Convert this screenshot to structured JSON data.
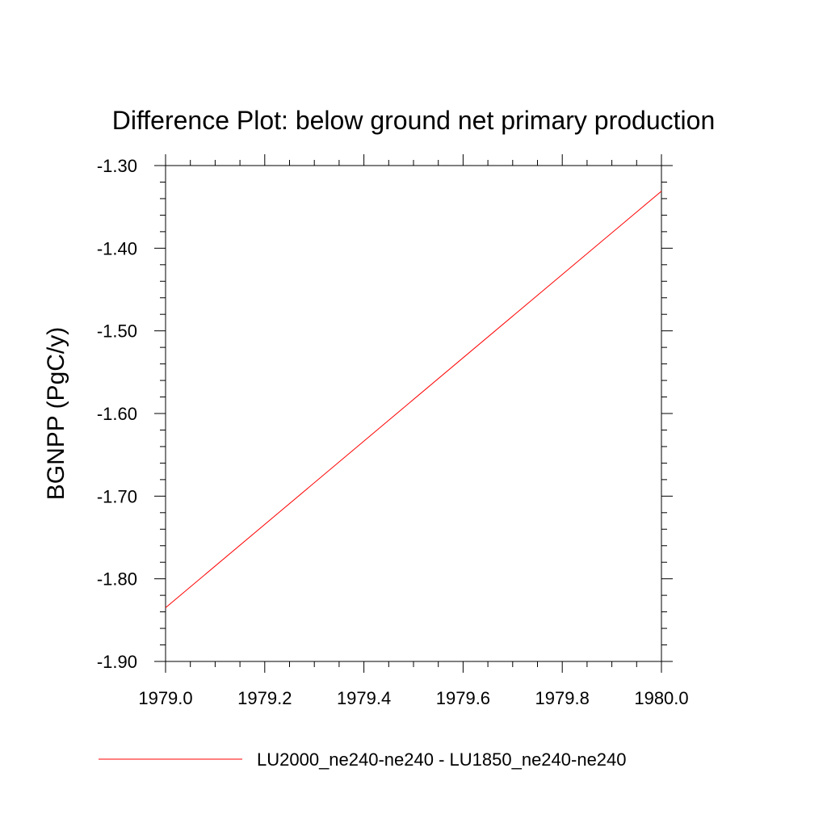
{
  "chart_data": {
    "type": "line",
    "title": "Difference Plot: below ground net primary production",
    "xlabel": "",
    "ylabel": "BGNPP  (PgC/y)",
    "xlim": [
      1979.0,
      1980.0
    ],
    "ylim": [
      -1.9,
      -1.3
    ],
    "x_ticks": [
      "1979.0",
      "1979.2",
      "1979.4",
      "1979.6",
      "1979.8",
      "1980.0"
    ],
    "y_ticks": [
      "-1.30",
      "-1.40",
      "-1.50",
      "-1.60",
      "-1.70",
      "-1.80",
      "-1.90"
    ],
    "grid": false,
    "legend_position": "bottom",
    "series": [
      {
        "name": "LU2000_ne240-ne240 - LU1850_ne240-ne240",
        "color": "#ff0000",
        "x": [
          1979.0,
          1980.0
        ],
        "y": [
          -1.835,
          -1.331
        ]
      }
    ]
  }
}
